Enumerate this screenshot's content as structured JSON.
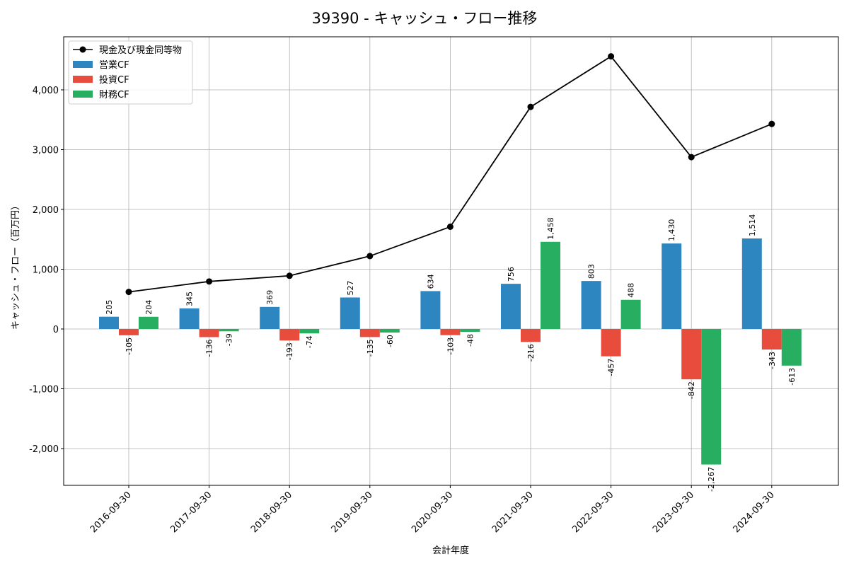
{
  "chart_data": {
    "type": "bar+line",
    "title": "39390 - キャッシュ・フロー推移",
    "xlabel": "会計年度",
    "ylabel": "キャッシュ・フロー（百万円）",
    "categories": [
      "2016-09-30",
      "2017-09-30",
      "2018-09-30",
      "2019-09-30",
      "2020-09-30",
      "2021-09-30",
      "2022-09-30",
      "2023-09-30",
      "2024-09-30"
    ],
    "series": [
      {
        "name": "営業CF",
        "kind": "bar",
        "color": "#2e86c1",
        "values": [
          205,
          345,
          369,
          527,
          634,
          756,
          803,
          1430,
          1514
        ],
        "labels": [
          "205",
          "345",
          "369",
          "527",
          "634",
          "756",
          "803",
          "1,430",
          "1,514"
        ]
      },
      {
        "name": "投資CF",
        "kind": "bar",
        "color": "#e74c3c",
        "values": [
          -105,
          -136,
          -193,
          -135,
          -103,
          -216,
          -457,
          -842,
          -343
        ],
        "labels": [
          "-105",
          "-136",
          "-193",
          "-135",
          "-103",
          "-216",
          "-457",
          "-842",
          "-343"
        ]
      },
      {
        "name": "財務CF",
        "kind": "bar",
        "color": "#27ae60",
        "values": [
          204,
          -39,
          -74,
          -60,
          -48,
          1458,
          488,
          -2267,
          -613
        ],
        "labels": [
          "204",
          "-39",
          "-74",
          "-60",
          "-48",
          "1,458",
          "488",
          "-2,267",
          "-613"
        ]
      },
      {
        "name": "現金及び現金同等物",
        "kind": "line",
        "color": "#000000",
        "values": [
          620,
          795,
          890,
          1220,
          1710,
          3715,
          4560,
          2875,
          3430
        ]
      }
    ],
    "ylim": [
      -2600,
      4900
    ],
    "yticks": [
      -2000,
      -1000,
      0,
      1000,
      2000,
      3000,
      4000
    ],
    "ytick_labels": [
      "-2,000",
      "-1,000",
      "0",
      "1,000",
      "2,000",
      "3,000",
      "4,000"
    ],
    "grid": true,
    "legend": "top-left"
  }
}
